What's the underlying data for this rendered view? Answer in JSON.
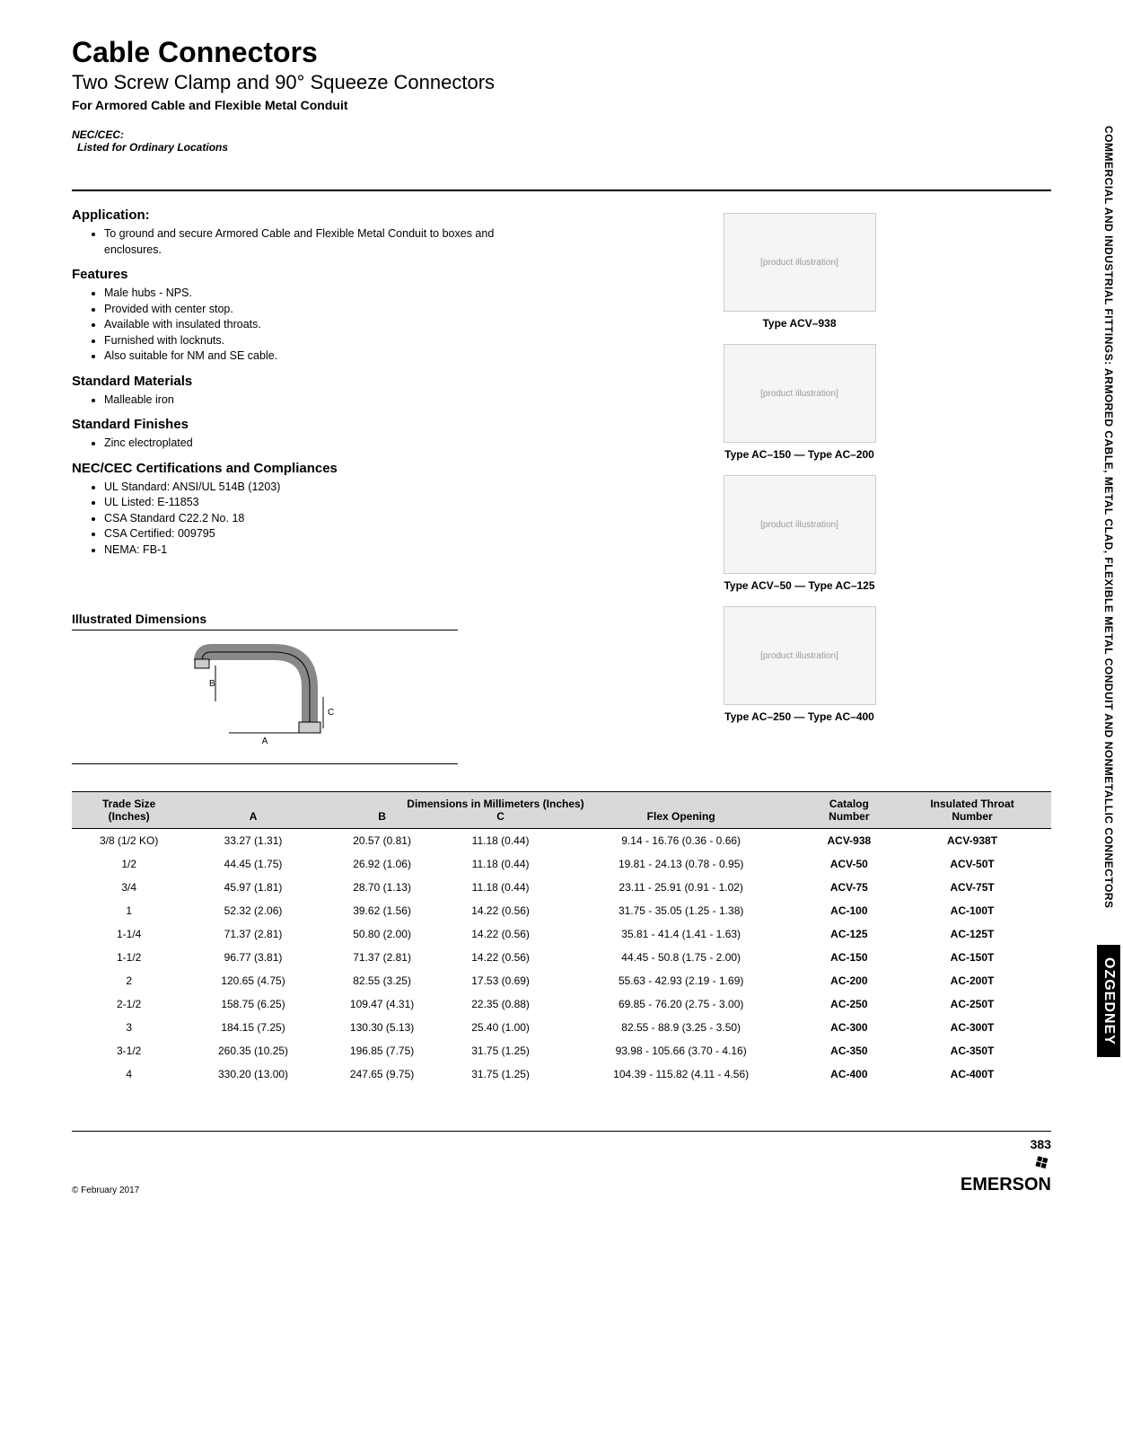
{
  "header": {
    "title": "Cable Connectors",
    "subtitle": "Two Screw Clamp and 90° Squeeze Connectors",
    "description": "For Armored Cable and Flexible Metal Conduit",
    "nec_label": "NEC/CEC:",
    "nec_text": "Listed for Ordinary Locations"
  },
  "sections": {
    "application": {
      "head": "Application:",
      "items": [
        "To ground and secure Armored Cable and Flexible Metal Conduit to boxes and enclosures."
      ]
    },
    "features": {
      "head": "Features",
      "items": [
        "Male hubs - NPS.",
        "Provided with center stop.",
        "Available with insulated throats.",
        "Furnished with locknuts.",
        "Also suitable for NM and SE cable."
      ]
    },
    "materials": {
      "head": "Standard Materials",
      "items": [
        "Malleable iron"
      ]
    },
    "finishes": {
      "head": "Standard Finishes",
      "items": [
        "Zinc electroplated"
      ]
    },
    "certs": {
      "head": "NEC/CEC Certifications and Compliances",
      "items": [
        "UL Standard: ANSI/UL 514B (1203)",
        "UL Listed: E-11853",
        "CSA Standard C22.2 No. 18",
        "CSA Certified: 009795",
        "NEMA: FB-1"
      ]
    },
    "illus_head": "Illustrated Dimensions"
  },
  "product_images": [
    {
      "caption": "Type ACV–938"
    },
    {
      "caption": "Type AC–150 — Type AC–200"
    },
    {
      "caption": "Type ACV–50 — Type AC–125"
    },
    {
      "caption": "Type AC–250 — Type AC–400"
    }
  ],
  "table": {
    "super_header": "Dimensions in Millimeters (Inches)",
    "h_trade1": "Trade Size",
    "h_trade2": "(Inches)",
    "h_a": "A",
    "h_b": "B",
    "h_c": "C",
    "h_flex": "Flex Opening",
    "h_cat1": "Catalog",
    "h_cat2": "Number",
    "h_ins1": "Insulated Throat",
    "h_ins2": "Catalog",
    "h_ins3": "Number",
    "rows": [
      {
        "ts": "3/8 (1/2 KO)",
        "a": "33.27 (1.31)",
        "b": "20.57 (0.81)",
        "c": "11.18 (0.44)",
        "flex": "9.14 - 16.76 (0.36 - 0.66)",
        "cat": "ACV-938",
        "ins": "ACV-938T"
      },
      {
        "ts": "1/2",
        "a": "44.45 (1.75)",
        "b": "26.92 (1.06)",
        "c": "11.18 (0.44)",
        "flex": "19.81 - 24.13 (0.78 - 0.95)",
        "cat": "ACV-50",
        "ins": "ACV-50T"
      },
      {
        "ts": "3/4",
        "a": "45.97 (1.81)",
        "b": "28.70 (1.13)",
        "c": "11.18 (0.44)",
        "flex": "23.11 - 25.91 (0.91 - 1.02)",
        "cat": "ACV-75",
        "ins": "ACV-75T"
      },
      {
        "ts": "1",
        "a": "52.32 (2.06)",
        "b": "39.62 (1.56)",
        "c": "14.22 (0.56)",
        "flex": "31.75 - 35.05 (1.25 - 1.38)",
        "cat": "AC-100",
        "ins": "AC-100T"
      },
      {
        "ts": "1-1/4",
        "a": "71.37 (2.81)",
        "b": "50.80 (2.00)",
        "c": "14.22 (0.56)",
        "flex": "35.81 - 41.4 (1.41 - 1.63)",
        "cat": "AC-125",
        "ins": "AC-125T"
      },
      {
        "ts": "1-1/2",
        "a": "96.77 (3.81)",
        "b": "71.37 (2.81)",
        "c": "14.22 (0.56)",
        "flex": "44.45 - 50.8 (1.75 - 2.00)",
        "cat": "AC-150",
        "ins": "AC-150T"
      },
      {
        "ts": "2",
        "a": "120.65 (4.75)",
        "b": "82.55 (3.25)",
        "c": "17.53 (0.69)",
        "flex": "55.63 - 42.93 (2.19 - 1.69)",
        "cat": "AC-200",
        "ins": "AC-200T"
      },
      {
        "ts": "2-1/2",
        "a": "158.75 (6.25)",
        "b": "109.47 (4.31)",
        "c": "22.35 (0.88)",
        "flex": "69.85 - 76.20 (2.75 - 3.00)",
        "cat": "AC-250",
        "ins": "AC-250T"
      },
      {
        "ts": "3",
        "a": "184.15 (7.25)",
        "b": "130.30 (5.13)",
        "c": "25.40 (1.00)",
        "flex": "82.55 - 88.9 (3.25 - 3.50)",
        "cat": "AC-300",
        "ins": "AC-300T"
      },
      {
        "ts": "3-1/2",
        "a": "260.35 (10.25)",
        "b": "196.85 (7.75)",
        "c": "31.75 (1.25)",
        "flex": "93.98 - 105.66 (3.70 - 4.16)",
        "cat": "AC-350",
        "ins": "AC-350T"
      },
      {
        "ts": "4",
        "a": "330.20 (13.00)",
        "b": "247.65 (9.75)",
        "c": "31.75 (1.25)",
        "flex": "104.39 - 115.82 (4.11 - 4.56)",
        "cat": "AC-400",
        "ins": "AC-400T"
      }
    ]
  },
  "side": {
    "category": "COMMERCIAL AND INDUSTRIAL FITTINGS: ARMORED CABLE, METAL CLAD, FLEXIBLE METAL CONDUIT AND NONMETALLIC CONNECTORS",
    "brand": "OZGEDNEY"
  },
  "footer": {
    "copyright": "© February 2017",
    "page": "383",
    "company": "EMERSON"
  },
  "styling": {
    "bg": "#ffffff",
    "text": "#000000",
    "table_header_bg": "#d9d9d9",
    "side_brand_bg": "#000000",
    "side_brand_fg": "#ffffff",
    "title_size_pt": 32,
    "subtitle_size_pt": 22,
    "body_size_pt": 12
  }
}
